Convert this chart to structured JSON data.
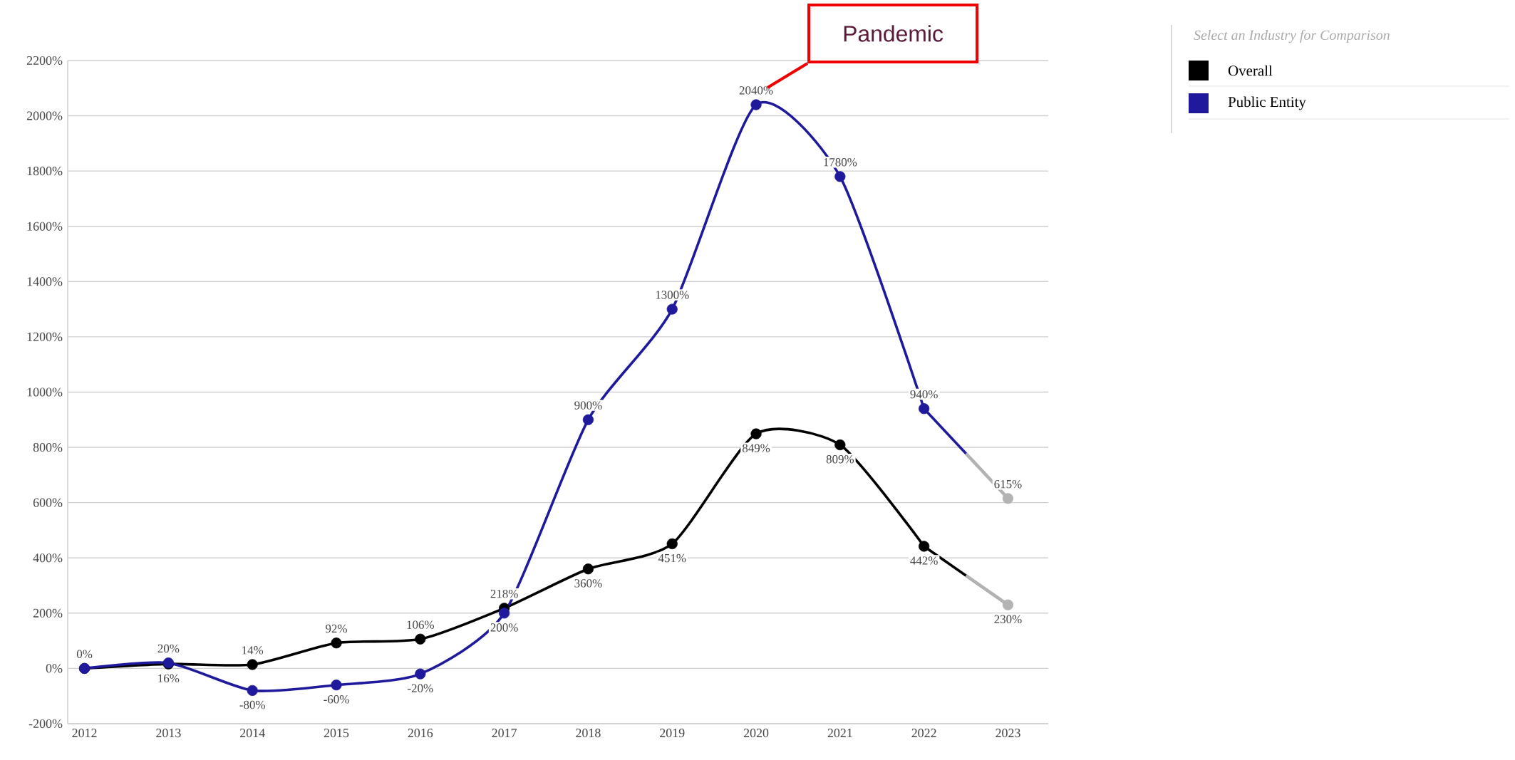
{
  "chart_data": {
    "type": "line",
    "categories": [
      "2012",
      "2013",
      "2014",
      "2015",
      "2016",
      "2017",
      "2018",
      "2019",
      "2020",
      "2021",
      "2022",
      "2023"
    ],
    "series": [
      {
        "name": "Overall",
        "color": "#000000",
        "colors": [
          "#000000",
          "#000000",
          "#000000",
          "#000000",
          "#000000",
          "#000000",
          "#000000",
          "#000000",
          "#000000",
          "#000000",
          "#000000",
          "#b3b3b3"
        ],
        "values": [
          0,
          16,
          14,
          92,
          106,
          218,
          360,
          451,
          849,
          809,
          442,
          230
        ],
        "value_labels": [
          "0%",
          "16%",
          "14%",
          "92%",
          "106%",
          "218%",
          "360%",
          "451%",
          "849%",
          "809%",
          "442%",
          "230%"
        ]
      },
      {
        "name": "Public Entity",
        "color": "#1f1a9c",
        "colors": [
          "#1f1a9c",
          "#1f1a9c",
          "#1f1a9c",
          "#1f1a9c",
          "#1f1a9c",
          "#1f1a9c",
          "#1f1a9c",
          "#1f1a9c",
          "#1f1a9c",
          "#1f1a9c",
          "#1f1a9c",
          "#b3b3b3"
        ],
        "values": [
          0,
          20,
          -80,
          -60,
          -20,
          200,
          900,
          1300,
          2040,
          1780,
          940,
          615
        ],
        "value_labels": [
          null,
          "20%",
          "-80%",
          "-60%",
          "-20%",
          "200%",
          "900%",
          "1300%",
          "2040%",
          "1780%",
          "940%",
          "615%"
        ]
      }
    ],
    "ylim": [
      -200,
      2200
    ],
    "yticks": [
      {
        "value": -200,
        "label": "-200%"
      },
      {
        "value": 0,
        "label": "0%"
      },
      {
        "value": 200,
        "label": "200%"
      },
      {
        "value": 400,
        "label": "400%"
      },
      {
        "value": 600,
        "label": "600%"
      },
      {
        "value": 800,
        "label": "800%"
      },
      {
        "value": 1000,
        "label": "1000%"
      },
      {
        "value": 1200,
        "label": "1200%"
      },
      {
        "value": 1400,
        "label": "1400%"
      },
      {
        "value": 1600,
        "label": "1600%"
      },
      {
        "value": 1800,
        "label": "1800%"
      },
      {
        "value": 2000,
        "label": "2000%"
      },
      {
        "value": 2200,
        "label": "2200%"
      }
    ],
    "grid": "y",
    "legend": "top right",
    "legend_title": "Select an Industry for Comparison",
    "marker": "circle",
    "line_style": "solid",
    "annotations": [
      "Pandemic"
    ]
  }
}
